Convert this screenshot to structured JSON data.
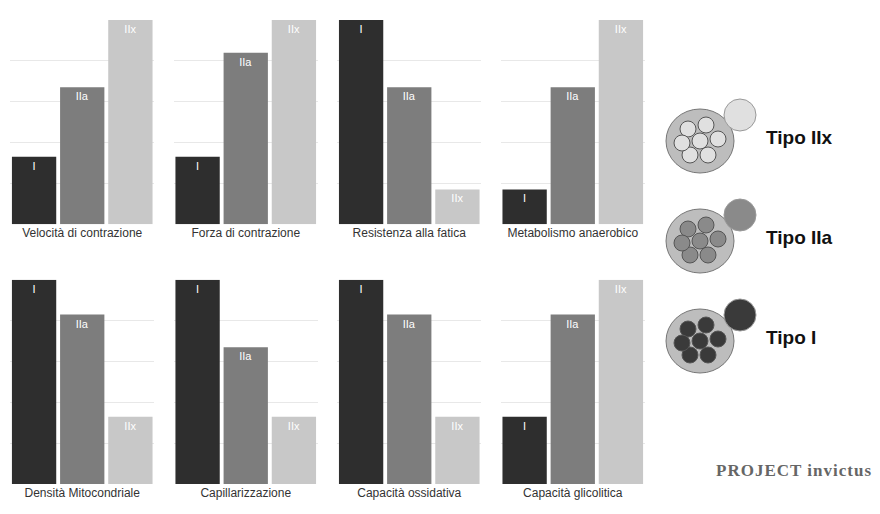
{
  "chart_data": [
    {
      "type": "bar",
      "title": "Velocità di contrazione",
      "categories": [
        "I",
        "IIa",
        "IIx"
      ],
      "values": [
        33,
        67,
        100
      ],
      "colors": [
        "#2e2e2e",
        "#7d7d7d",
        "#c8c8c8"
      ],
      "ylim": [
        0,
        100
      ],
      "yticks": [
        0,
        20,
        40,
        60,
        80,
        100
      ],
      "grid": true,
      "tick_labels": false
    },
    {
      "type": "bar",
      "title": "Forza di contrazione",
      "categories": [
        "I",
        "IIa",
        "IIx"
      ],
      "values": [
        33,
        84,
        100
      ],
      "colors": [
        "#2e2e2e",
        "#7d7d7d",
        "#c8c8c8"
      ],
      "ylim": [
        0,
        100
      ],
      "yticks": [
        0,
        20,
        40,
        60,
        80,
        100
      ],
      "grid": true,
      "tick_labels": false
    },
    {
      "type": "bar",
      "title": "Resistenza alla fatica",
      "categories": [
        "I",
        "IIa",
        "IIx"
      ],
      "values": [
        100,
        67,
        17
      ],
      "colors": [
        "#2e2e2e",
        "#7d7d7d",
        "#c8c8c8"
      ],
      "ylim": [
        0,
        100
      ],
      "yticks": [
        0,
        20,
        40,
        60,
        80,
        100
      ],
      "grid": true,
      "tick_labels": false
    },
    {
      "type": "bar",
      "title": "Metabolismo anaerobico",
      "categories": [
        "I",
        "IIa",
        "IIx"
      ],
      "values": [
        17,
        67,
        100
      ],
      "colors": [
        "#2e2e2e",
        "#7d7d7d",
        "#c8c8c8"
      ],
      "ylim": [
        0,
        100
      ],
      "yticks": [
        0,
        20,
        40,
        60,
        80,
        100
      ],
      "grid": true,
      "tick_labels": false
    },
    {
      "type": "bar",
      "title": "Densità Mitocondriale",
      "categories": [
        "I",
        "IIa",
        "IIx"
      ],
      "values": [
        100,
        83,
        33
      ],
      "colors": [
        "#2e2e2e",
        "#7d7d7d",
        "#c8c8c8"
      ],
      "ylim": [
        0,
        100
      ],
      "yticks": [
        0,
        20,
        40,
        60,
        80,
        100
      ],
      "grid": true,
      "tick_labels": false
    },
    {
      "type": "bar",
      "title": "Capillarizzazione",
      "categories": [
        "I",
        "IIa",
        "IIx"
      ],
      "values": [
        100,
        67,
        33
      ],
      "colors": [
        "#2e2e2e",
        "#7d7d7d",
        "#c8c8c8"
      ],
      "ylim": [
        0,
        100
      ],
      "yticks": [
        0,
        20,
        40,
        60,
        80,
        100
      ],
      "grid": true,
      "tick_labels": false
    },
    {
      "type": "bar",
      "title": "Capacità ossidativa",
      "categories": [
        "I",
        "IIa",
        "IIx"
      ],
      "values": [
        100,
        83,
        33
      ],
      "colors": [
        "#2e2e2e",
        "#7d7d7d",
        "#c8c8c8"
      ],
      "ylim": [
        0,
        100
      ],
      "yticks": [
        0,
        20,
        40,
        60,
        80,
        100
      ],
      "grid": true,
      "tick_labels": false
    },
    {
      "type": "bar",
      "title": "Capacità glicolitica",
      "categories": [
        "I",
        "IIa",
        "IIx"
      ],
      "values": [
        33,
        83,
        100
      ],
      "colors": [
        "#2e2e2e",
        "#7d7d7d",
        "#c8c8c8"
      ],
      "ylim": [
        0,
        100
      ],
      "yticks": [
        0,
        20,
        40,
        60,
        80,
        100
      ],
      "grid": true,
      "tick_labels": false
    }
  ],
  "fiber_types": [
    {
      "label": "Tipo IIx",
      "color": "#e0e0e0"
    },
    {
      "label": "Tipo IIa",
      "color": "#8a8a8a"
    },
    {
      "label": "Tipo I",
      "color": "#3a3a3a"
    }
  ],
  "logo": "PROJECT invictus"
}
